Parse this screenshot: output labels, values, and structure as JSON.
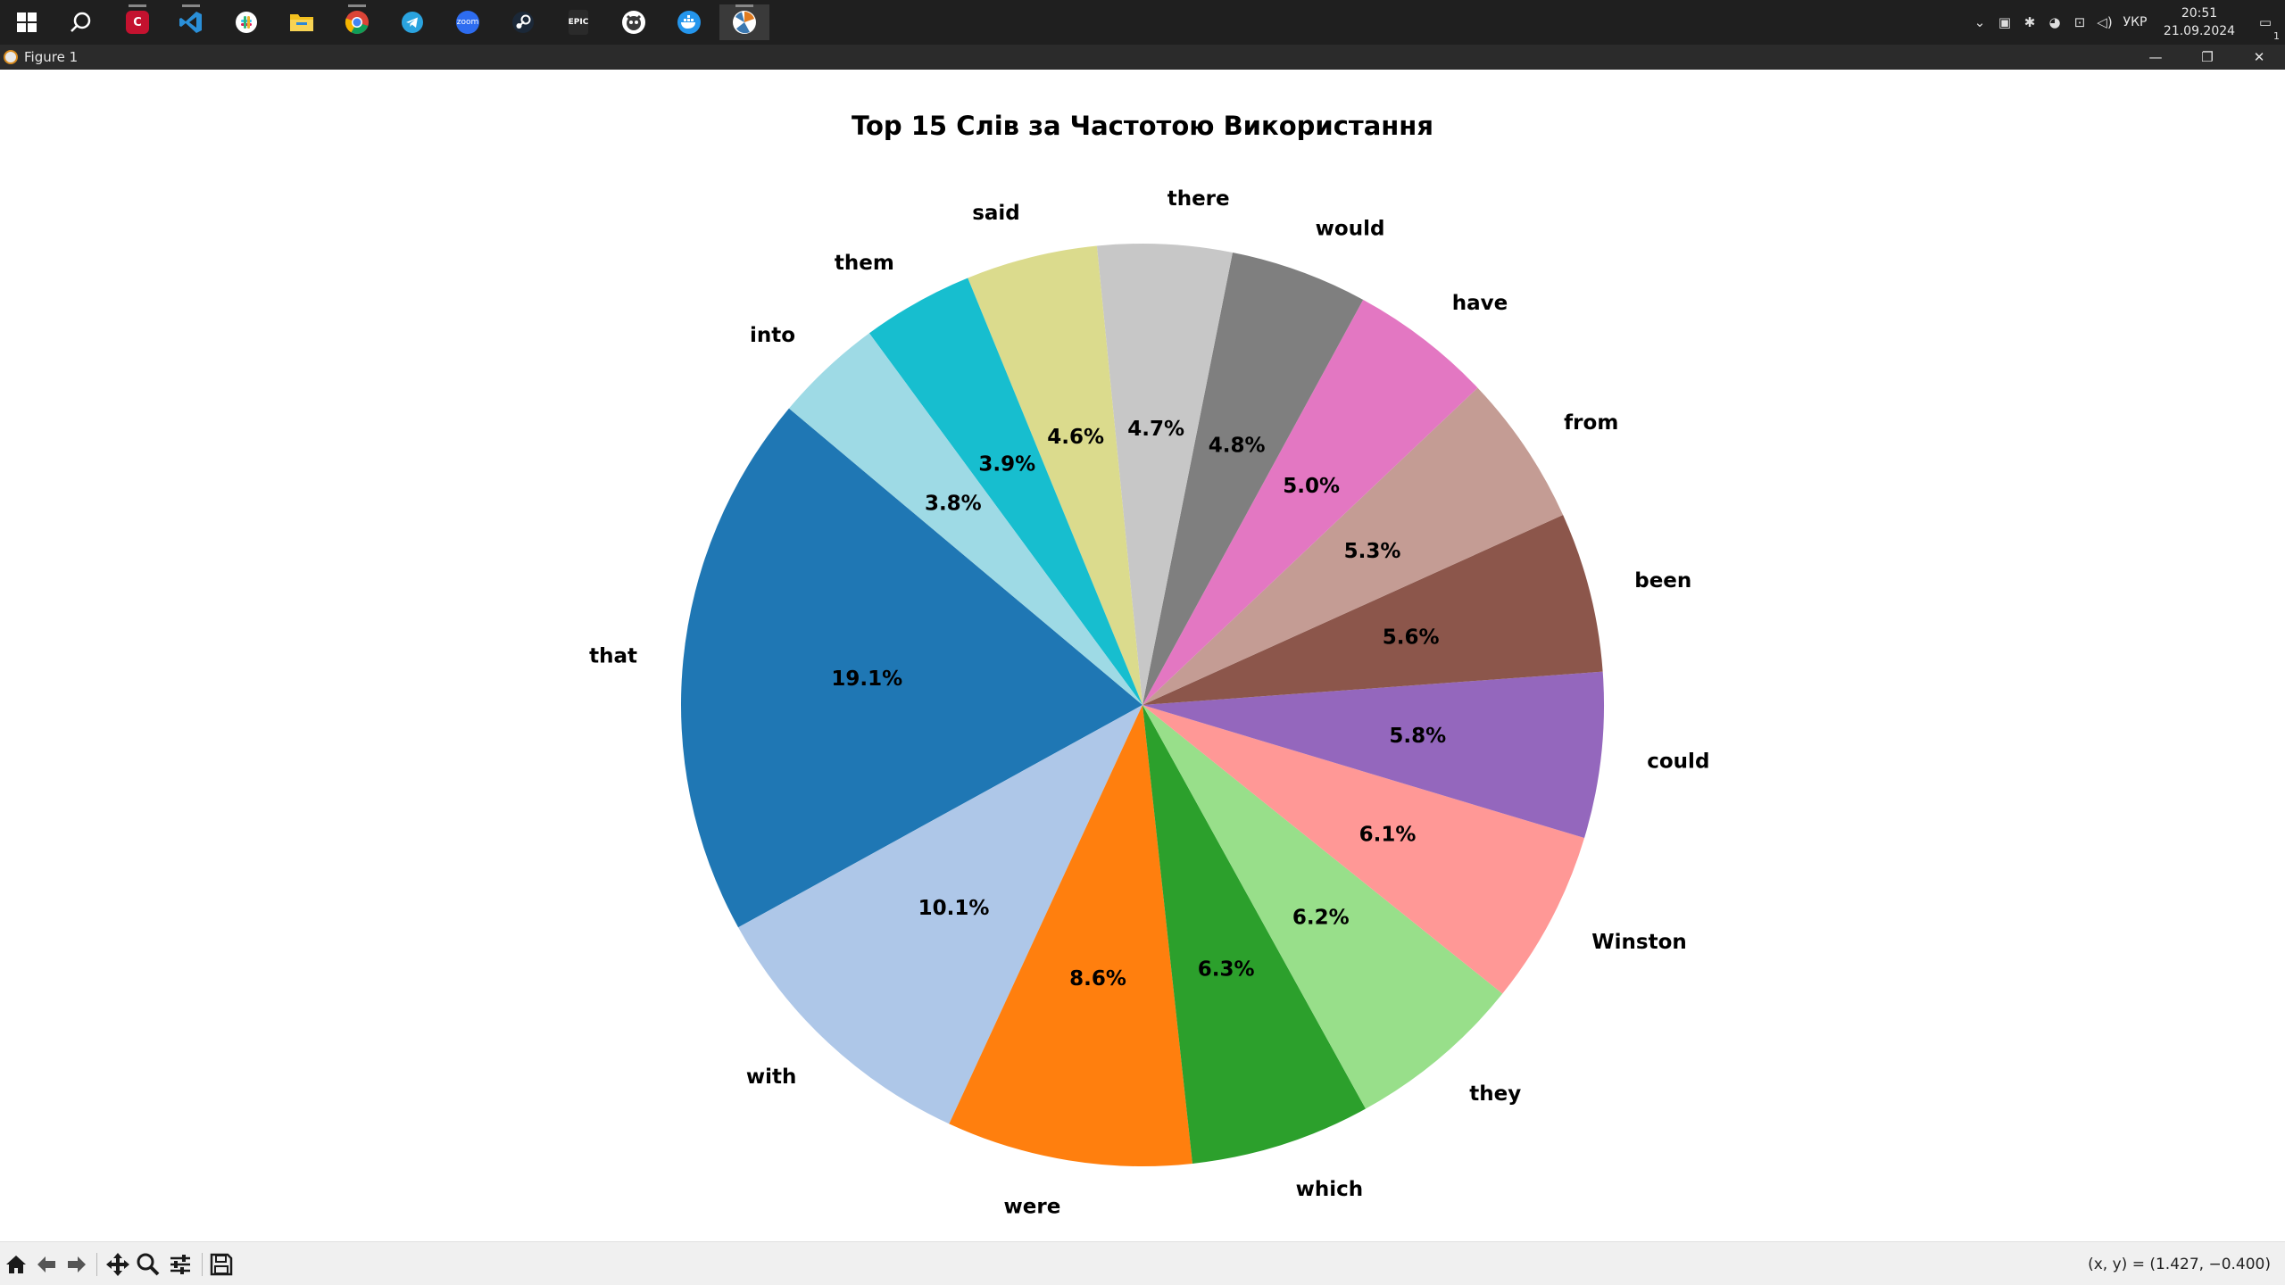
{
  "taskbar": {
    "apps": [
      {
        "name": "windows-start-icon",
        "color": "#ffffff"
      },
      {
        "name": "search-icon",
        "color": "#ffffff"
      },
      {
        "name": "app-red-c-icon",
        "color": "#c4122f"
      },
      {
        "name": "vscode-icon",
        "color": "#2a8fd8"
      },
      {
        "name": "slack-icon",
        "color": "#e8e8e8"
      },
      {
        "name": "file-explorer-icon",
        "color": "#f2c01e"
      },
      {
        "name": "chrome-icon",
        "color": "#34a853"
      },
      {
        "name": "telegram-icon",
        "color": "#2aa3df"
      },
      {
        "name": "zoom-icon",
        "color": "#2d6cf0"
      },
      {
        "name": "steam-icon",
        "color": "#1b2838"
      },
      {
        "name": "epic-games-icon",
        "color": "#2a2a2a"
      },
      {
        "name": "github-desktop-icon",
        "color": "#e8e8e8"
      },
      {
        "name": "docker-icon",
        "color": "#2496ed"
      },
      {
        "name": "python-figure-icon",
        "color": "#e8e8e8"
      }
    ],
    "zoom_text": "zoom",
    "epic_text": "EPIC",
    "lang": "УКР",
    "time": "20:51",
    "date": "21.09.2024",
    "notification_count": "1"
  },
  "window": {
    "title": "Figure 1"
  },
  "chart_data": {
    "type": "pie",
    "title": "Top 15 Слів за Частотою Використання",
    "start_angle_deg": 140,
    "direction": "counterclockwise",
    "slices": [
      {
        "label": "that",
        "pct": 19.1,
        "pct_text": "19.1%",
        "color": "#1f77b4"
      },
      {
        "label": "with",
        "pct": 10.1,
        "pct_text": "10.1%",
        "color": "#aec7e8"
      },
      {
        "label": "were",
        "pct": 8.6,
        "pct_text": "8.6%",
        "color": "#ff7f0e"
      },
      {
        "label": "which",
        "pct": 6.3,
        "pct_text": "6.3%",
        "color": "#2ca02c"
      },
      {
        "label": "they",
        "pct": 6.2,
        "pct_text": "6.2%",
        "color": "#98df8a"
      },
      {
        "label": "Winston",
        "pct": 6.1,
        "pct_text": "6.1%",
        "color": "#ff9896"
      },
      {
        "label": "could",
        "pct": 5.8,
        "pct_text": "5.8%",
        "color": "#9467bd"
      },
      {
        "label": "been",
        "pct": 5.6,
        "pct_text": "5.6%",
        "color": "#8c564b"
      },
      {
        "label": "from",
        "pct": 5.3,
        "pct_text": "5.3%",
        "color": "#c49c94"
      },
      {
        "label": "have",
        "pct": 5.0,
        "pct_text": "5.0%",
        "color": "#e377c2"
      },
      {
        "label": "would",
        "pct": 4.8,
        "pct_text": "4.8%",
        "color": "#7f7f7f"
      },
      {
        "label": "there",
        "pct": 4.7,
        "pct_text": "4.7%",
        "color": "#c7c7c7"
      },
      {
        "label": "said",
        "pct": 4.6,
        "pct_text": "4.6%",
        "color": "#dbdb8d"
      },
      {
        "label": "them",
        "pct": 3.9,
        "pct_text": "3.9%",
        "color": "#17becf"
      },
      {
        "label": "into",
        "pct": 3.8,
        "pct_text": "3.8%",
        "color": "#9edae5"
      }
    ]
  },
  "toolbar": {
    "tools": [
      {
        "name": "home-icon"
      },
      {
        "name": "back-arrow-icon"
      },
      {
        "name": "forward-arrow-icon"
      },
      {
        "name": "pan-move-icon"
      },
      {
        "name": "zoom-magnifier-icon"
      },
      {
        "name": "configure-subplots-icon"
      },
      {
        "name": "save-floppy-icon"
      }
    ],
    "coords": "(x, y) = (1.427, −0.400)"
  }
}
